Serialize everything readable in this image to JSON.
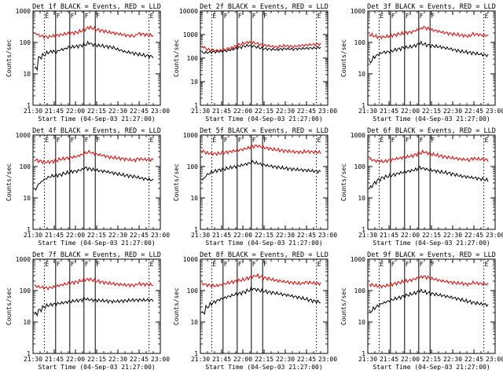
{
  "chart_data": [
    {
      "type": "line",
      "title": "Det 1f BLACK = Events, RED = LLD",
      "xlabel": "Start Time (04-Sep-03 21:27:00)",
      "ylabel": "Counts/sec",
      "yscale": "log",
      "ylim": [
        1,
        1000
      ],
      "xlim": [
        "21:30",
        "23:00"
      ],
      "x_tick_labels": [
        "21:30",
        "21:45",
        "22:00",
        "22:15",
        "22:30",
        "22:45",
        "23:00"
      ],
      "y_tick_labels": [
        "1",
        "10",
        "100",
        "1000"
      ],
      "flag_labels": [
        "E",
        "F",
        "F",
        "F",
        "F",
        "E"
      ],
      "series": [
        {
          "name": "Events",
          "color": "#000000",
          "values": [
            15,
            33,
            40,
            48,
            52,
            50,
            58,
            62,
            70,
            72,
            75,
            80,
            85,
            95,
            85,
            80,
            78,
            75,
            72,
            68,
            60,
            55,
            50,
            48,
            45,
            42,
            40,
            38,
            36,
            35
          ]
        },
        {
          "name": "LLD",
          "color": "#e00000",
          "values": [
            190,
            165,
            155,
            150,
            160,
            165,
            175,
            185,
            195,
            200,
            210,
            230,
            260,
            300,
            280,
            255,
            240,
            225,
            210,
            200,
            190,
            180,
            170,
            165,
            160,
            190,
            185,
            175,
            170,
            165
          ]
        }
      ]
    },
    {
      "type": "line",
      "title": "Det 2f BLACK = Events, RED = LLD",
      "xlabel": "Start Time (04-Sep-03 21:27:00)",
      "ylabel": "Counts/sec",
      "yscale": "log",
      "ylim": [
        1,
        10000
      ],
      "xlim": [
        "21:30",
        "23:00"
      ],
      "x_tick_labels": [
        "21:30",
        "21:45",
        "22:00",
        "22:15",
        "22:30",
        "22:45",
        "23:00"
      ],
      "y_tick_labels": [
        "1",
        "10",
        "100",
        "1000",
        "10000"
      ],
      "flag_labels": [
        "E",
        "F",
        "F",
        "F",
        "F",
        "E"
      ],
      "series": [
        {
          "name": "Events",
          "color": "#000000",
          "values": [
            170,
            175,
            180,
            185,
            190,
            200,
            210,
            230,
            260,
            290,
            320,
            340,
            330,
            300,
            270,
            250,
            240,
            235,
            230,
            240,
            250,
            245,
            240,
            250,
            255,
            260,
            265,
            270,
            280,
            290
          ]
        },
        {
          "name": "LLD",
          "color": "#e00000",
          "values": [
            300,
            240,
            220,
            210,
            215,
            230,
            250,
            280,
            320,
            380,
            430,
            470,
            460,
            420,
            380,
            350,
            330,
            310,
            300,
            320,
            340,
            320,
            310,
            330,
            350,
            360,
            370,
            380,
            390,
            400
          ]
        }
      ]
    },
    {
      "type": "line",
      "title": "Det 3f BLACK = Events, RED = LLD",
      "xlabel": "Start Time (04-Sep-03 21:27:00)",
      "ylabel": "Counts/sec",
      "yscale": "log",
      "ylim": [
        1,
        1000
      ],
      "xlim": [
        "21:30",
        "23:00"
      ],
      "x_tick_labels": [
        "21:30",
        "21:45",
        "22:00",
        "22:15",
        "22:30",
        "22:45",
        "23:00"
      ],
      "y_tick_labels": [
        "1",
        "10",
        "100",
        "1000"
      ],
      "flag_labels": [
        "E",
        "F",
        "F",
        "F",
        "F",
        "E"
      ],
      "series": [
        {
          "name": "Events",
          "color": "#000000",
          "values": [
            25,
            35,
            42,
            48,
            50,
            52,
            58,
            62,
            68,
            70,
            74,
            80,
            95,
            88,
            82,
            78,
            75,
            72,
            68,
            64,
            60,
            56,
            52,
            50,
            48,
            46,
            44,
            42,
            40,
            38
          ]
        },
        {
          "name": "LLD",
          "color": "#e00000",
          "values": [
            175,
            160,
            150,
            148,
            155,
            165,
            175,
            185,
            195,
            205,
            215,
            240,
            270,
            300,
            275,
            250,
            235,
            220,
            205,
            195,
            185,
            178,
            170,
            165,
            160,
            185,
            180,
            172,
            168,
            160
          ]
        }
      ]
    },
    {
      "type": "line",
      "title": "Det 4f BLACK = Events, RED = LLD",
      "xlabel": "Start Time (04-Sep-03 21:27:00)",
      "ylabel": "Counts/sec",
      "yscale": "log",
      "ylim": [
        1,
        1000
      ],
      "xlim": [
        "21:30",
        "23:00"
      ],
      "x_tick_labels": [
        "21:30",
        "21:45",
        "22:00",
        "22:15",
        "22:30",
        "22:45",
        "23:00"
      ],
      "y_tick_labels": [
        "1",
        "10",
        "100",
        "1000"
      ],
      "flag_labels": [
        "E",
        "F",
        "F",
        "F",
        "F",
        "E"
      ],
      "series": [
        {
          "name": "Events",
          "color": "#000000",
          "values": [
            20,
            30,
            38,
            45,
            50,
            52,
            55,
            60,
            65,
            70,
            72,
            78,
            90,
            85,
            80,
            76,
            72,
            70,
            66,
            62,
            58,
            55,
            52,
            50,
            48,
            45,
            42,
            40,
            38,
            36
          ]
        },
        {
          "name": "LLD",
          "color": "#e00000",
          "values": [
            160,
            150,
            140,
            138,
            145,
            155,
            170,
            180,
            190,
            200,
            210,
            235,
            265,
            290,
            265,
            245,
            230,
            215,
            200,
            192,
            185,
            178,
            170,
            165,
            160,
            175,
            170,
            168,
            165,
            160
          ]
        }
      ]
    },
    {
      "type": "line",
      "title": "Det 5f BLACK = Events, RED = LLD",
      "xlabel": "Start Time (04-Sep-03 21:27:00)",
      "ylabel": "Counts/sec",
      "yscale": "log",
      "ylim": [
        1,
        1000
      ],
      "xlim": [
        "21:30",
        "23:00"
      ],
      "x_tick_labels": [
        "21:30",
        "21:45",
        "22:00",
        "22:15",
        "22:30",
        "22:45",
        "23:00"
      ],
      "y_tick_labels": [
        "1",
        "10",
        "100",
        "1000"
      ],
      "flag_labels": [
        "E",
        "F",
        "F",
        "F",
        "F",
        "E"
      ],
      "series": [
        {
          "name": "Events",
          "color": "#000000",
          "values": [
            40,
            55,
            65,
            72,
            78,
            82,
            88,
            95,
            100,
            108,
            115,
            125,
            140,
            130,
            120,
            112,
            105,
            100,
            96,
            92,
            88,
            85,
            82,
            80,
            78,
            76,
            74,
            72,
            70,
            68
          ]
        },
        {
          "name": "LLD",
          "color": "#e00000",
          "values": [
            300,
            270,
            260,
            255,
            262,
            275,
            290,
            305,
            320,
            340,
            360,
            390,
            430,
            460,
            430,
            400,
            375,
            355,
            340,
            325,
            315,
            305,
            295,
            290,
            285,
            300,
            295,
            290,
            285,
            280
          ]
        }
      ]
    },
    {
      "type": "line",
      "title": "Det 6f BLACK = Events, RED = LLD",
      "xlabel": "Start Time (04-Sep-03 21:27:00)",
      "ylabel": "Counts/sec",
      "yscale": "log",
      "ylim": [
        1,
        1000
      ],
      "xlim": [
        "21:30",
        "23:00"
      ],
      "x_tick_labels": [
        "21:30",
        "21:45",
        "22:00",
        "22:15",
        "22:30",
        "22:45",
        "23:00"
      ],
      "y_tick_labels": [
        "1",
        "10",
        "100",
        "1000"
      ],
      "flag_labels": [
        "E",
        "F",
        "F",
        "F",
        "F",
        "E"
      ],
      "series": [
        {
          "name": "Events",
          "color": "#000000",
          "values": [
            22,
            30,
            38,
            44,
            48,
            52,
            56,
            62,
            66,
            70,
            74,
            80,
            92,
            86,
            80,
            76,
            72,
            68,
            65,
            62,
            58,
            54,
            50,
            48,
            46,
            44,
            42,
            40,
            38,
            36
          ]
        },
        {
          "name": "LLD",
          "color": "#e00000",
          "values": [
            170,
            155,
            148,
            145,
            152,
            162,
            175,
            185,
            195,
            205,
            215,
            240,
            268,
            290,
            268,
            248,
            232,
            218,
            205,
            196,
            188,
            180,
            172,
            168,
            162,
            180,
            175,
            170,
            166,
            160
          ]
        }
      ]
    },
    {
      "type": "line",
      "title": "Det 7f BLACK = Events, RED = LLD",
      "xlabel": "Start Time (04-Sep-03 21:27:00)",
      "ylabel": "Counts/sec",
      "yscale": "log",
      "ylim": [
        1,
        1000
      ],
      "xlim": [
        "21:30",
        "23:00"
      ],
      "x_tick_labels": [
        "21:30",
        "21:45",
        "22:00",
        "22:15",
        "22:30",
        "22:45",
        "23:00"
      ],
      "y_tick_labels": [
        "1",
        "10",
        "100",
        "1000"
      ],
      "flag_labels": [
        "E",
        "F",
        "F",
        "F",
        "F",
        "E"
      ],
      "series": [
        {
          "name": "Events",
          "color": "#000000",
          "values": [
            18,
            24,
            30,
            34,
            36,
            38,
            40,
            42,
            44,
            46,
            48,
            50,
            55,
            52,
            50,
            49,
            48,
            47,
            46,
            45,
            46,
            47,
            48,
            49,
            50,
            50,
            50,
            50,
            50,
            50
          ]
        },
        {
          "name": "LLD",
          "color": "#e00000",
          "values": [
            140,
            130,
            125,
            122,
            128,
            138,
            150,
            160,
            170,
            180,
            190,
            205,
            220,
            230,
            215,
            200,
            190,
            180,
            172,
            165,
            160,
            156,
            152,
            150,
            148,
            165,
            160,
            158,
            155,
            152
          ]
        }
      ]
    },
    {
      "type": "line",
      "title": "Det 8f BLACK = Events, RED = LLD",
      "xlabel": "Start Time (04-Sep-03 21:27:00)",
      "ylabel": "Counts/sec",
      "yscale": "log",
      "ylim": [
        1,
        1000
      ],
      "xlim": [
        "21:30",
        "23:00"
      ],
      "x_tick_labels": [
        "21:30",
        "21:45",
        "22:00",
        "22:15",
        "22:30",
        "22:45",
        "23:00"
      ],
      "y_tick_labels": [
        "1",
        "10",
        "100",
        "1000"
      ],
      "flag_labels": [
        "E",
        "F",
        "F",
        "F",
        "F",
        "E"
      ],
      "series": [
        {
          "name": "Events",
          "color": "#000000",
          "values": [
            20,
            30,
            38,
            45,
            52,
            58,
            64,
            70,
            76,
            82,
            90,
            100,
            115,
            108,
            100,
            95,
            90,
            86,
            82,
            78,
            74,
            70,
            66,
            62,
            58,
            54,
            50,
            47,
            44,
            42
          ]
        },
        {
          "name": "LLD",
          "color": "#e00000",
          "values": [
            165,
            152,
            145,
            142,
            150,
            160,
            175,
            188,
            200,
            212,
            225,
            250,
            280,
            300,
            275,
            255,
            238,
            222,
            210,
            200,
            192,
            185,
            178,
            172,
            168,
            185,
            180,
            175,
            170,
            165
          ]
        }
      ]
    },
    {
      "type": "line",
      "title": "Det 9f BLACK = Events, RED = LLD",
      "xlabel": "Start Time (04-Sep-03 21:27:00)",
      "ylabel": "Counts/sec",
      "yscale": "log",
      "ylim": [
        1,
        1000
      ],
      "xlim": [
        "21:30",
        "23:00"
      ],
      "x_tick_labels": [
        "21:30",
        "21:45",
        "22:00",
        "22:15",
        "22:30",
        "22:45",
        "23:00"
      ],
      "y_tick_labels": [
        "1",
        "10",
        "100",
        "1000"
      ],
      "flag_labels": [
        "E",
        "F",
        "F",
        "F",
        "F",
        "E"
      ],
      "series": [
        {
          "name": "Events",
          "color": "#000000",
          "values": [
            22,
            28,
            34,
            40,
            45,
            50,
            55,
            60,
            66,
            72,
            78,
            85,
            100,
            92,
            85,
            80,
            76,
            72,
            68,
            64,
            60,
            56,
            52,
            48,
            45,
            42,
            40,
            38,
            36,
            34
          ]
        },
        {
          "name": "LLD",
          "color": "#e00000",
          "values": [
            155,
            145,
            140,
            138,
            145,
            155,
            168,
            180,
            192,
            205,
            218,
            240,
            265,
            280,
            260,
            240,
            225,
            210,
            198,
            190,
            182,
            175,
            170,
            165,
            160,
            178,
            172,
            168,
            162,
            158
          ]
        }
      ]
    }
  ]
}
